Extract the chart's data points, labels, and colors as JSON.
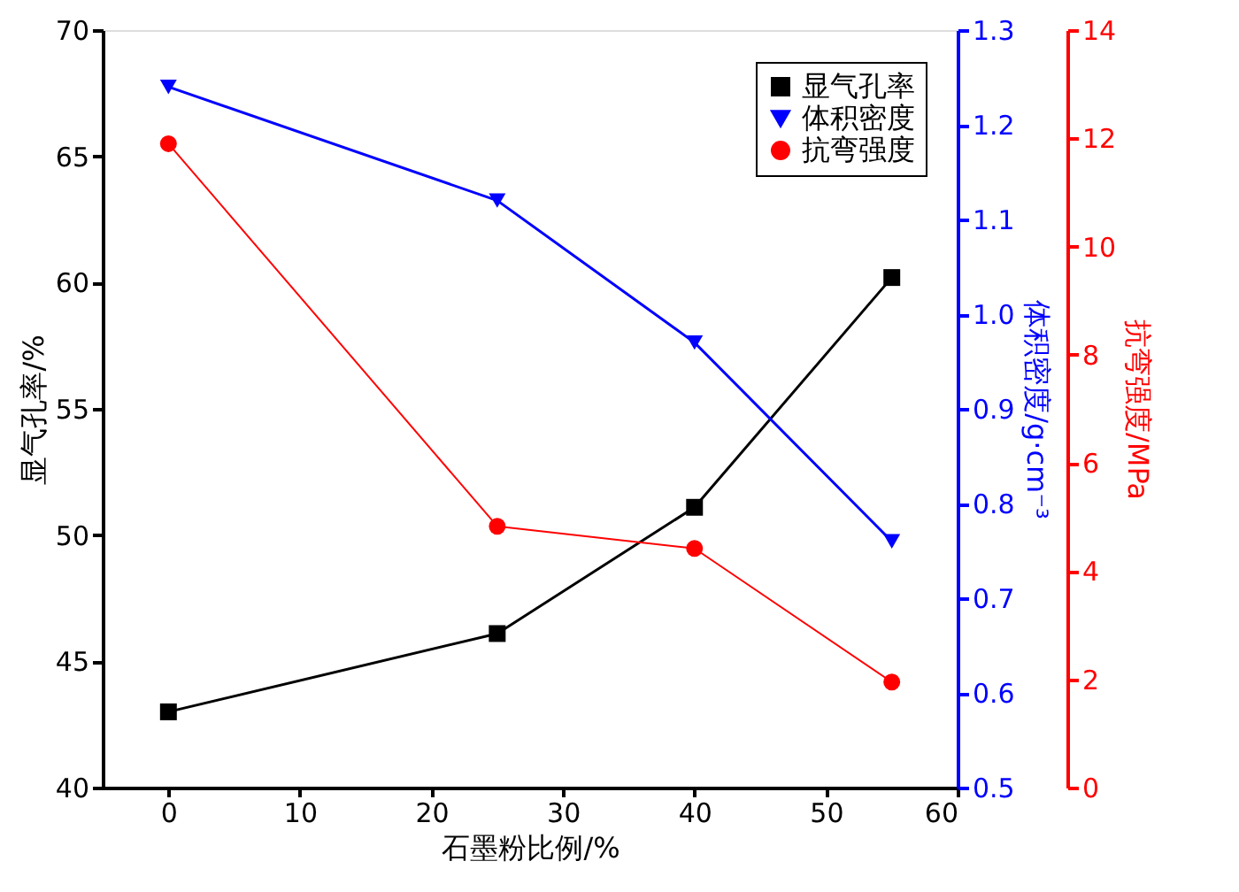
{
  "chart_data": {
    "type": "line",
    "xlabel": "石墨粉比例/%",
    "ylabel": "显气孔率/%",
    "y2label": "体积密度/g·cm⁻³",
    "y3label": "抗弯强度/MPa",
    "x": [
      0,
      25,
      40,
      55
    ],
    "xlim": [
      -5,
      60
    ],
    "xticks": [
      0,
      10,
      20,
      30,
      40,
      50,
      60
    ],
    "ylim": [
      40,
      70
    ],
    "yticks": [
      40,
      45,
      50,
      55,
      60,
      65,
      70
    ],
    "y2lim": [
      0.5,
      1.3
    ],
    "y2ticks": [
      0.5,
      0.6,
      0.7,
      0.8,
      0.9,
      {
        "value": 1.0,
        "label": "1.0"
      },
      1.1,
      1.2,
      1.3
    ],
    "y3lim": [
      0,
      14
    ],
    "y3ticks": [
      0,
      2,
      4,
      6,
      8,
      10,
      12,
      14
    ],
    "series": [
      {
        "name": "显气孔率",
        "color": "#000000",
        "marker": "square",
        "axis": "y",
        "values": [
          43.0,
          46.1,
          51.1,
          60.2
        ]
      },
      {
        "name": "体积密度",
        "color": "#0000ff",
        "marker": "triangle-down",
        "axis": "y2",
        "values": [
          1.24,
          1.12,
          0.97,
          0.76
        ]
      },
      {
        "name": "抗弯强度",
        "color": "#ff0000",
        "marker": "circle",
        "axis": "y3",
        "values": [
          11.9,
          4.83,
          4.42,
          1.95
        ]
      }
    ],
    "grid": false,
    "legend": "top right",
    "line_style": "solid"
  }
}
